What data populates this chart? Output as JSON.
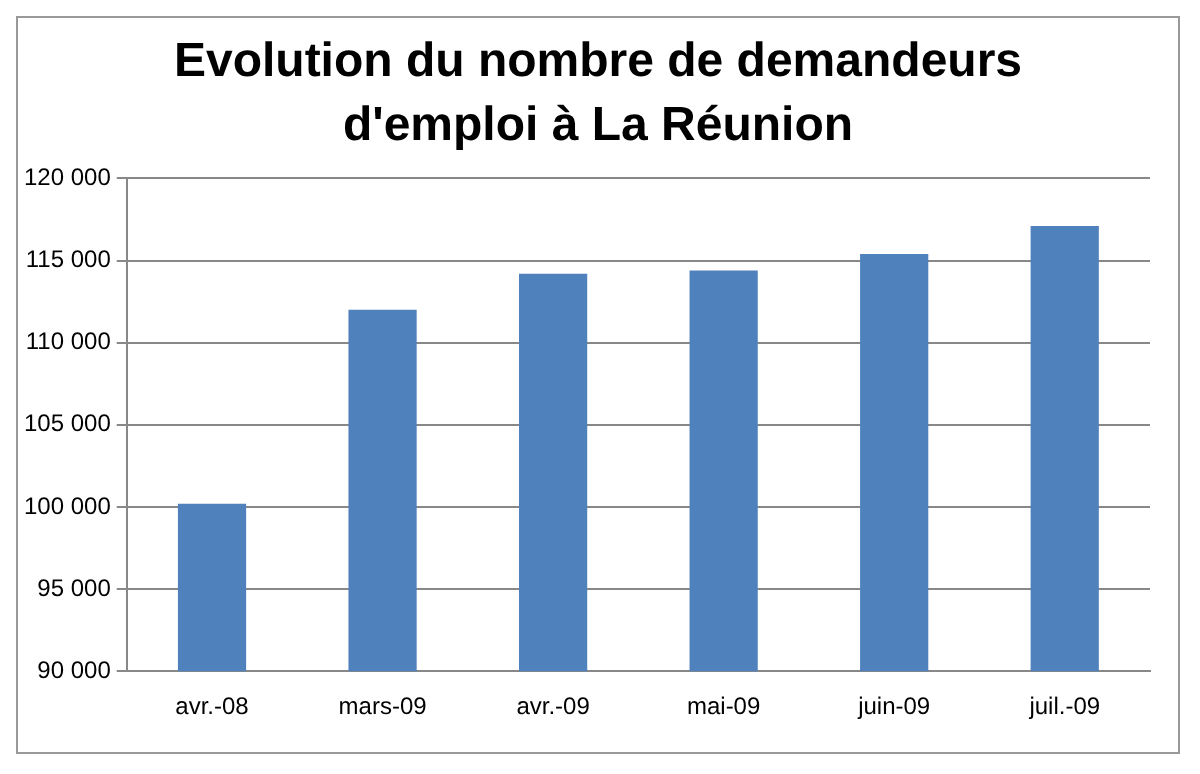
{
  "chart_data": {
    "type": "bar",
    "title": "Evolution du nombre de demandeurs d'emploi à La Réunion",
    "categories": [
      "avr.-08",
      "mars-09",
      "avr.-09",
      "mai-09",
      "juin-09",
      "juil.-09"
    ],
    "values": [
      100200,
      112000,
      114200,
      114400,
      115400,
      117100
    ],
    "color": "#4f81bd",
    "ylim": [
      90000,
      120000
    ],
    "yticks": [
      {
        "value": 90000,
        "label": "90 000"
      },
      {
        "value": 95000,
        "label": "95 000"
      },
      {
        "value": 100000,
        "label": "100 000"
      },
      {
        "value": 105000,
        "label": "105 000"
      },
      {
        "value": 110000,
        "label": "110 000"
      },
      {
        "value": 115000,
        "label": "115 000"
      },
      {
        "value": 120000,
        "label": "120 000"
      }
    ],
    "grid": "y"
  }
}
